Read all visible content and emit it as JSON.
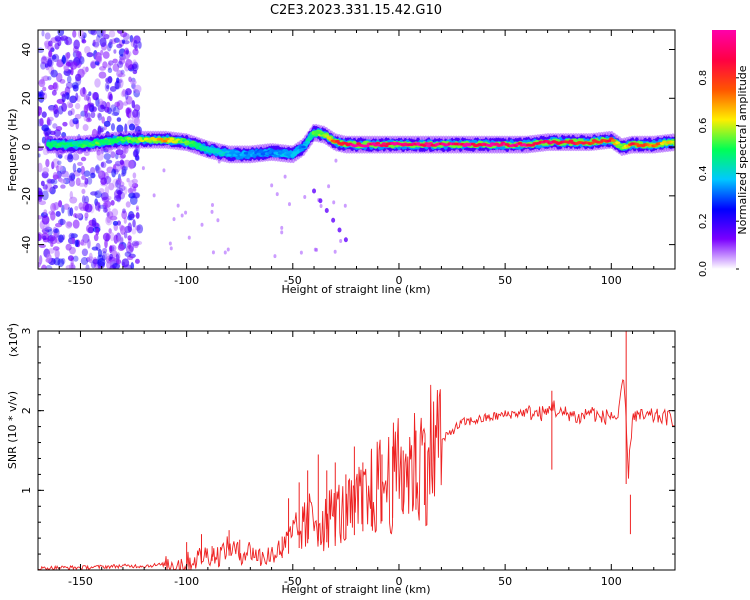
{
  "title": "C2E3.2023.331.15.42.G10",
  "chart_data": [
    {
      "type": "heatmap",
      "xlabel": "Height of straight line (km)",
      "ylabel": "Frequency (Hz)",
      "xlim": [
        -170,
        130
      ],
      "ylim": [
        -50,
        48
      ],
      "xticks": [
        -150,
        -100,
        -50,
        0,
        50,
        100
      ],
      "yticks": [
        -40,
        -20,
        0,
        20,
        40
      ],
      "colorbar": {
        "label": "Normalized spectral amplitude",
        "range": [
          0,
          1
        ],
        "ticks": [
          "0.0",
          "0.2",
          "0.4",
          "0.6",
          "0.8"
        ],
        "tick_values": [
          0.0,
          0.2,
          0.4,
          0.6,
          0.8
        ],
        "colors": [
          "#ffffff",
          "#7a00ff",
          "#0000ff",
          "#00c8ff",
          "#00ff55",
          "#ffee00",
          "#ff5500",
          "#ff0044",
          "#ff00aa"
        ]
      },
      "ridge": {
        "description_note": "",
        "x": [
          -165,
          -150,
          -140,
          -130,
          -120,
          -110,
          -100,
          -90,
          -80,
          -70,
          -60,
          -50,
          -45,
          -40,
          -35,
          -30,
          -25,
          -20,
          -10,
          0,
          20,
          40,
          60,
          70,
          80,
          90,
          100,
          105,
          110,
          120,
          130
        ],
        "frequency": [
          1,
          1,
          2,
          3,
          3,
          3,
          2,
          -1,
          -3,
          -3,
          -2,
          -3,
          0,
          6,
          5,
          2,
          1,
          1,
          1,
          1,
          1,
          1,
          1,
          2,
          2,
          2,
          3,
          0,
          1,
          1,
          2
        ],
        "amplitude": [
          0.5,
          0.5,
          0.55,
          0.55,
          0.6,
          0.7,
          0.55,
          0.45,
          0.4,
          0.35,
          0.35,
          0.4,
          0.35,
          0.55,
          0.6,
          0.8,
          0.95,
          1.0,
          1.0,
          1.0,
          1.0,
          1.0,
          1.0,
          0.95,
          0.95,
          0.9,
          0.85,
          0.6,
          0.85,
          0.8,
          0.6
        ]
      }
    },
    {
      "type": "line",
      "xlabel": "Height of straight line (km)",
      "ylabel": "SNR (10 * v/v)",
      "y_multiplier": "(x10",
      "y_multiplier_exp": "4",
      "y_multiplier_close": ")",
      "xlim": [
        -170,
        130
      ],
      "ylim": [
        0,
        3
      ],
      "xticks": [
        -150,
        -100,
        -50,
        0,
        50,
        100
      ],
      "yticks": [
        1,
        2,
        3
      ],
      "series": [
        {
          "color": "#ee2222",
          "x": [
            -170,
            -160,
            -150,
            -140,
            -130,
            -120,
            -110,
            -100,
            -95,
            -90,
            -85,
            -80,
            -75,
            -70,
            -65,
            -60,
            -55,
            -50,
            -45,
            -40,
            -35,
            -30,
            -25,
            -20,
            -15,
            -10,
            -5,
            0,
            5,
            10,
            15,
            20,
            25,
            30,
            40,
            50,
            60,
            65,
            70,
            72,
            75,
            80,
            85,
            90,
            95,
            100,
            103,
            106,
            108,
            110,
            115,
            120,
            130
          ],
          "y": [
            0.02,
            0.03,
            0.03,
            0.04,
            0.05,
            0.05,
            0.07,
            0.08,
            0.15,
            0.2,
            0.18,
            0.3,
            0.2,
            0.25,
            0.15,
            0.2,
            0.25,
            0.4,
            0.5,
            0.65,
            0.55,
            0.7,
            0.65,
            0.75,
            0.85,
            1.0,
            1.05,
            1.15,
            1.2,
            1.3,
            1.45,
            1.6,
            1.75,
            1.85,
            1.9,
            1.95,
            1.98,
            1.96,
            1.97,
            2.1,
            1.95,
            1.97,
            1.9,
            2.0,
            1.9,
            1.95,
            1.9,
            2.4,
            1.2,
            1.95,
            1.92,
            1.93,
            1.9
          ]
        }
      ],
      "spikes": {
        "x": [
          -100,
          -93,
          -88,
          -80,
          -75,
          -55,
          -52,
          -47,
          -43,
          -38,
          -34,
          -30,
          -25,
          -21,
          -17,
          -13,
          -8,
          -3,
          2,
          8,
          12,
          72,
          107,
          109
        ],
        "y": [
          0.35,
          0.45,
          0.3,
          0.5,
          0.38,
          0.42,
          0.9,
          1.1,
          1.25,
          1.45,
          1.25,
          1.35,
          1.2,
          1.55,
          1.35,
          1.5,
          1.45,
          1.55,
          1.5,
          1.75,
          1.6,
          2.25,
          3.0,
          0.45
        ]
      }
    }
  ]
}
